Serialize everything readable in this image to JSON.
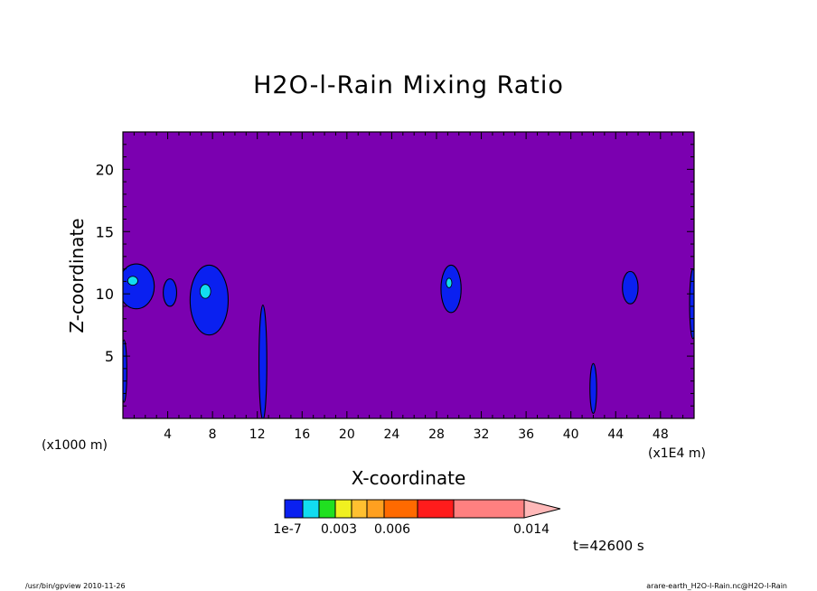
{
  "chart_data": {
    "type": "heatmap",
    "title": "H2O-l-Rain Mixing Ratio",
    "xlabel": "X-coordinate",
    "ylabel": "Z-coordinate",
    "x_unit_left": "(x1000 m)",
    "x_unit_right": "(x1E4 m)",
    "xlim": [
      0,
      51
    ],
    "ylim": [
      0,
      23
    ],
    "x_ticks": [
      4,
      8,
      12,
      16,
      20,
      24,
      28,
      32,
      36,
      40,
      44,
      48
    ],
    "x_tick_labels": [
      "4",
      "8",
      "12",
      "16",
      "20",
      "24",
      "28",
      "32",
      "36",
      "40",
      "44",
      "48"
    ],
    "y_ticks": [
      5,
      10,
      15,
      20
    ],
    "y_tick_labels": [
      "5",
      "10",
      "15",
      "20"
    ],
    "background_color": "#7b00b0",
    "contour_levels_colors": [
      "#0a20f0",
      "#12dcf0",
      "#20e020",
      "#f0f020",
      "#ffc030",
      "#ffa020",
      "#ff6a00",
      "#ff1c1c",
      "#ff8080",
      "#ffb8b8"
    ],
    "colorbar_labels": [
      "1e-7",
      "0.003",
      "0.006",
      "0.014"
    ],
    "blobs": [
      {
        "x": 1.2,
        "z": 10.6,
        "rx": 1.6,
        "rz": 1.8
      },
      {
        "x": 4.2,
        "z": 10.1,
        "rx": 0.6,
        "rz": 1.1
      },
      {
        "x": 7.7,
        "z": 9.5,
        "rx": 1.7,
        "rz": 2.8
      },
      {
        "x": 12.5,
        "z": 4.5,
        "rx": 0.35,
        "rz": 4.6
      },
      {
        "x": 29.3,
        "z": 10.4,
        "rx": 0.9,
        "rz": 1.9
      },
      {
        "x": 42.0,
        "z": 2.4,
        "rx": 0.3,
        "rz": 2.0
      },
      {
        "x": 45.3,
        "z": 10.5,
        "rx": 0.7,
        "rz": 1.3
      },
      {
        "x": 50.9,
        "z": 9.2,
        "rx": 0.3,
        "rz": 2.8
      },
      {
        "x": 0.1,
        "z": 3.8,
        "rx": 0.25,
        "rz": 2.5
      }
    ],
    "time_label": "t=42600 s"
  },
  "footer": {
    "left": "/usr/bin/gpview 2010-11-26",
    "right": "arare-earth_H2O-l-Rain.nc@H2O-l-Rain"
  }
}
